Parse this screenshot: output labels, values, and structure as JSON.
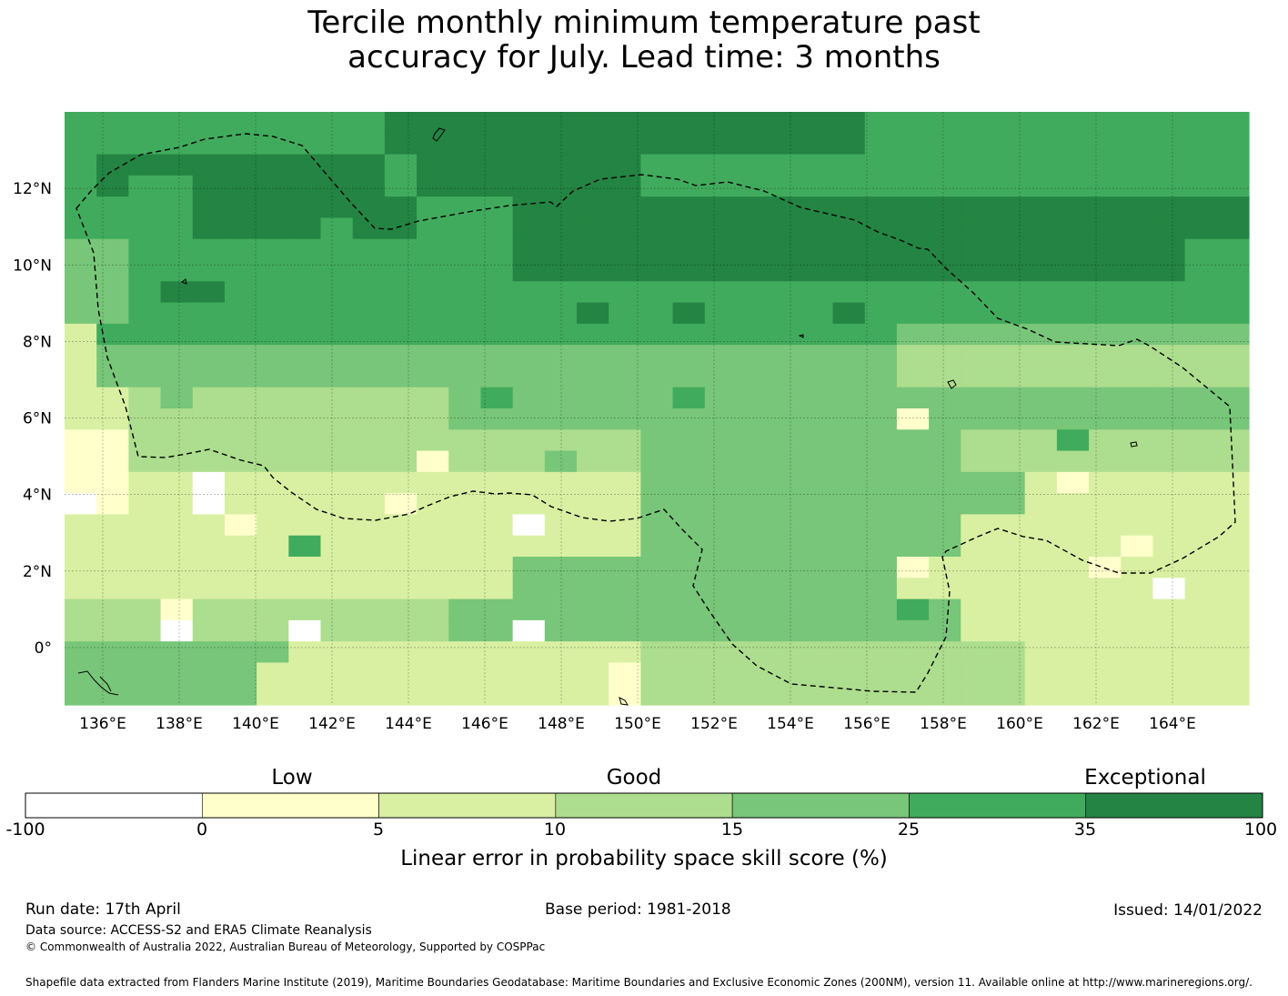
{
  "title": {
    "line1": "Tercile monthly minimum temperature past",
    "line2": "accuracy for July. Lead time: 3 months"
  },
  "map": {
    "lon_labels": [
      "136°E",
      "138°E",
      "140°E",
      "142°E",
      "144°E",
      "146°E",
      "148°E",
      "150°E",
      "152°E",
      "154°E",
      "156°E",
      "158°E",
      "160°E",
      "162°E",
      "164°E"
    ],
    "lat_labels": [
      "12°N",
      "10°N",
      "8°N",
      "6°N",
      "4°N",
      "2°N",
      "0°"
    ],
    "lon_range": [
      135.0,
      166.0
    ],
    "lat_range": [
      -1.5,
      14.0
    ],
    "grid_lines": true,
    "boundary": "dashed EEZ boundary (Federated States of Micronesia)",
    "palette": {
      "white": "#ffffff",
      "cream": "#ffffcc",
      "pale": "#d9f0a3",
      "light": "#addd8e",
      "mid": "#78c679",
      "green": "#41ab5d",
      "dark": "#238443"
    }
  },
  "colorbar": {
    "category_labels": [
      "Low",
      "Good",
      "Exceptional"
    ],
    "ticks": [
      "-100",
      "0",
      "5",
      "10",
      "15",
      "25",
      "35",
      "100"
    ],
    "colors": [
      "#ffffff",
      "#ffffcc",
      "#d9f0a3",
      "#addd8e",
      "#78c679",
      "#41ab5d",
      "#238443"
    ],
    "title": "Linear error in probability space skill score (%)"
  },
  "footer": {
    "run_date": "Run date: 17th April",
    "base_period": "Base period: 1981-2018",
    "issued": "Issued: 14/01/2022",
    "data_source": "Data source: ACCESS-S2 and ERA5 Climate Reanalysis",
    "copyright": "© Commonwealth of Australia 2022, Australian Bureau of Meteorology, Supported by COSPPac",
    "shapefile": "Shapefile data extracted from Flanders Marine Institute (2019), Maritime Boundaries Geodatabase: Maritime Boundaries and Exclusive Economic Zones (200NM), version 11. Available online at http://www.marineregions.org/."
  }
}
